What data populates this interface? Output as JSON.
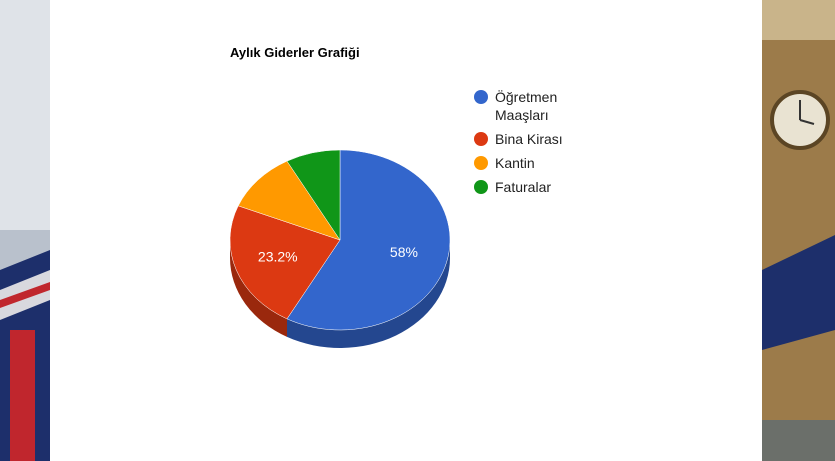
{
  "chart_data": {
    "type": "pie",
    "title": "Aylık Giderler Grafiği",
    "categories": [
      "Öğretmen Maaşları",
      "Bina Kirası",
      "Kantin",
      "Faturalar"
    ],
    "values": [
      58,
      23.2,
      10.8,
      8
    ],
    "value_labels": [
      "58%",
      "23.2%",
      null,
      null
    ],
    "colors": [
      "#3366cc",
      "#dc3912",
      "#ff9900",
      "#109618"
    ],
    "legend": "right",
    "three_d": true
  }
}
